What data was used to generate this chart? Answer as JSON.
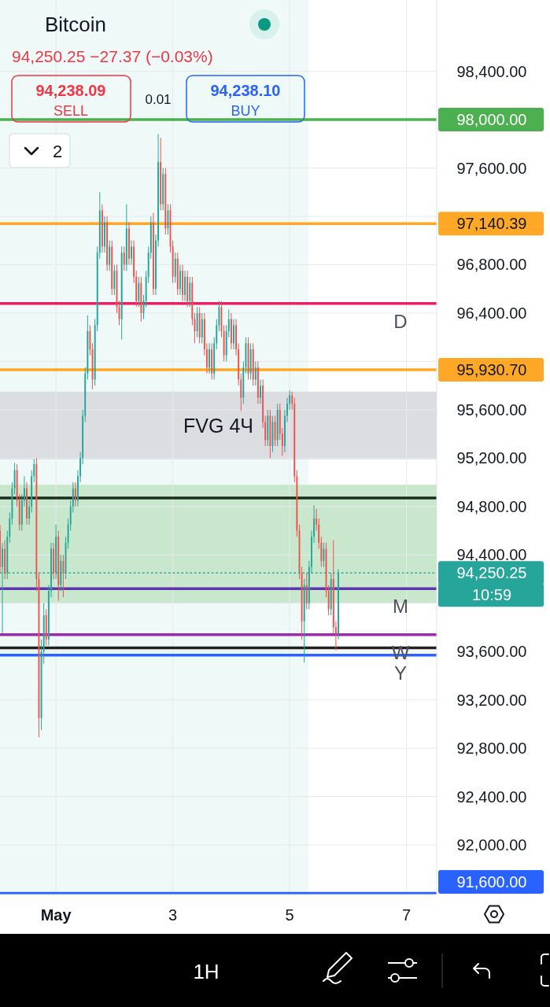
{
  "chart_data": {
    "type": "candlestick",
    "title": "Bitcoin",
    "subtitle": "94,250.25 −27.37 (−0.03%)",
    "annotations": [
      "94,238.09",
      "SELL",
      "0.01",
      "94,238.10",
      "BUY",
      "2",
      "10:59",
      "1H",
      {
        "text": "D",
        "y": 96480
      },
      {
        "text": "M",
        "y": 94120
      },
      {
        "text": "W",
        "y": 93740
      },
      {
        "text": "Y",
        "y": 93570
      }
    ],
    "x": [
      0.042,
      0.083,
      0.125,
      0.167,
      0.208,
      0.25,
      0.292,
      0.333,
      0.375,
      0.417,
      0.458,
      0.5,
      0.542,
      0.583,
      0.625,
      0.667,
      0.708,
      0.75,
      0.792,
      0.833,
      0.875,
      0.917,
      0.958,
      1,
      1.042,
      1.083,
      1.125,
      1.167,
      1.208,
      1.25,
      1.292,
      1.333,
      1.375,
      1.417,
      1.458,
      1.5,
      1.542,
      1.583,
      1.625,
      1.667,
      1.708,
      1.75,
      1.792,
      1.833,
      1.875,
      1.917,
      1.958,
      2,
      2.042,
      2.083,
      2.125,
      2.167,
      2.208,
      2.25,
      2.292,
      2.333,
      2.375,
      2.417,
      2.458,
      2.5,
      2.542,
      2.583,
      2.625,
      2.667,
      2.708,
      2.75,
      2.792,
      2.833,
      2.875,
      2.917,
      2.958,
      3,
      3.042,
      3.083,
      3.125,
      3.167,
      3.208,
      3.25,
      3.292,
      3.333,
      3.375,
      3.417,
      3.458,
      3.5,
      3.542,
      3.583,
      3.625,
      3.667,
      3.708,
      3.75,
      3.792,
      3.833,
      3.875,
      3.917,
      3.958,
      4,
      4.042,
      4.083,
      4.125,
      4.167,
      4.208,
      4.25,
      4.292,
      4.333,
      4.375,
      4.417,
      4.458,
      4.5,
      4.542,
      4.583,
      4.625,
      4.667,
      4.708,
      4.75,
      4.792,
      4.833,
      4.875,
      4.917,
      4.958,
      5,
      5.042,
      5.083,
      5.125,
      5.167,
      5.208,
      5.25,
      5.292,
      5.333,
      5.375,
      5.417,
      5.458,
      5.5,
      5.542,
      5.583,
      5.625,
      5.667,
      5.708,
      5.75,
      5.792,
      5.833
    ],
    "ohlc": [
      [
        94600,
        94650,
        94250,
        94300
      ],
      [
        94300,
        94500,
        93750,
        94450
      ],
      [
        94450,
        94520,
        94200,
        94250
      ],
      [
        94250,
        94600,
        94200,
        94550
      ],
      [
        94550,
        94750,
        94500,
        94700
      ],
      [
        94700,
        95000,
        94650,
        94950
      ],
      [
        94950,
        95160,
        94900,
        95100
      ],
      [
        95100,
        95150,
        94800,
        94850
      ],
      [
        94850,
        94900,
        94600,
        94650
      ],
      [
        94650,
        94900,
        94600,
        94850
      ],
      [
        94850,
        95050,
        94800,
        94950
      ],
      [
        94950,
        95000,
        94650,
        94700
      ],
      [
        94700,
        94850,
        94650,
        94800
      ],
      [
        94800,
        95100,
        94750,
        95050
      ],
      [
        95050,
        95190,
        95000,
        95150
      ],
      [
        95150,
        95200,
        94100,
        94200
      ],
      [
        94200,
        94250,
        92890,
        93050
      ],
      [
        93050,
        93700,
        92950,
        93600
      ],
      [
        93600,
        94000,
        93500,
        93900
      ],
      [
        93900,
        93950,
        93650,
        93700
      ],
      [
        93700,
        94150,
        93650,
        94100
      ],
      [
        94100,
        94500,
        94050,
        94450
      ],
      [
        94450,
        94500,
        94200,
        94250
      ],
      [
        94250,
        94650,
        94200,
        94550
      ],
      [
        94550,
        94600,
        94020,
        94150
      ],
      [
        94150,
        94400,
        94100,
        94350
      ],
      [
        94350,
        94400,
        94050,
        94250
      ],
      [
        94250,
        94550,
        94200,
        94500
      ],
      [
        94500,
        94700,
        94450,
        94650
      ],
      [
        94650,
        94850,
        94600,
        94800
      ],
      [
        94800,
        95000,
        94750,
        94950
      ],
      [
        94950,
        95000,
        94800,
        94850
      ],
      [
        94850,
        95100,
        94800,
        95050
      ],
      [
        95050,
        95250,
        95000,
        95200
      ],
      [
        95200,
        95600,
        95150,
        95550
      ],
      [
        95550,
        95950,
        95500,
        95900
      ],
      [
        95900,
        96380,
        95850,
        96250
      ],
      [
        96250,
        96300,
        96050,
        96100
      ],
      [
        96100,
        96150,
        95770,
        95850
      ],
      [
        95850,
        96350,
        95800,
        96300
      ],
      [
        96300,
        96950,
        96250,
        96900
      ],
      [
        96900,
        97400,
        96850,
        97250
      ],
      [
        97250,
        97300,
        96900,
        96950
      ],
      [
        96950,
        97200,
        96900,
        97150
      ],
      [
        97150,
        97200,
        96750,
        96800
      ],
      [
        96800,
        97000,
        96750,
        96950
      ],
      [
        96950,
        97000,
        96550,
        96600
      ],
      [
        96600,
        96800,
        96550,
        96750
      ],
      [
        96750,
        96800,
        96400,
        96450
      ],
      [
        96450,
        96500,
        96300,
        96350
      ],
      [
        96350,
        96950,
        96180,
        96900
      ],
      [
        96900,
        96950,
        96750,
        96800
      ],
      [
        96800,
        97300,
        96750,
        97100
      ],
      [
        97100,
        97150,
        96800,
        96850
      ],
      [
        96850,
        97000,
        96800,
        96950
      ],
      [
        96950,
        97000,
        96650,
        96700
      ],
      [
        96700,
        96750,
        96450,
        96500
      ],
      [
        96500,
        96700,
        96450,
        96650
      ],
      [
        96650,
        96700,
        96330,
        96400
      ],
      [
        96400,
        96550,
        96350,
        96500
      ],
      [
        96500,
        96750,
        96450,
        96700
      ],
      [
        96700,
        96950,
        96650,
        96900
      ],
      [
        96900,
        97200,
        96850,
        97150
      ],
      [
        97150,
        97230,
        96550,
        96600
      ],
      [
        96600,
        97050,
        96550,
        97000
      ],
      [
        97000,
        97880,
        96950,
        97650
      ],
      [
        97650,
        97850,
        97250,
        97300
      ],
      [
        97300,
        97600,
        97250,
        97550
      ],
      [
        97550,
        97600,
        97050,
        97100
      ],
      [
        97100,
        97300,
        97050,
        97250
      ],
      [
        97250,
        97300,
        96900,
        96950
      ],
      [
        96950,
        97000,
        96650,
        96700
      ],
      [
        96700,
        96900,
        96650,
        96850
      ],
      [
        96850,
        96900,
        96550,
        96600
      ],
      [
        96600,
        96800,
        96550,
        96750
      ],
      [
        96750,
        96800,
        96500,
        96550
      ],
      [
        96550,
        96750,
        96500,
        96700
      ],
      [
        96700,
        96750,
        96450,
        96500
      ],
      [
        96500,
        96700,
        96450,
        96650
      ],
      [
        96650,
        96700,
        96300,
        96350
      ],
      [
        96350,
        96400,
        96150,
        96250
      ],
      [
        96250,
        96450,
        96200,
        96400
      ],
      [
        96400,
        96450,
        96150,
        96200
      ],
      [
        96200,
        96400,
        96150,
        96350
      ],
      [
        96350,
        96400,
        96050,
        96100
      ],
      [
        96100,
        96150,
        95900,
        95950
      ],
      [
        95950,
        96150,
        95900,
        96100
      ],
      [
        96100,
        96150,
        95850,
        95900
      ],
      [
        95900,
        96200,
        95850,
        96150
      ],
      [
        96150,
        96350,
        96100,
        96300
      ],
      [
        96300,
        96500,
        96250,
        96450
      ],
      [
        96450,
        96500,
        96200,
        96250
      ],
      [
        96250,
        96300,
        96000,
        96050
      ],
      [
        96050,
        96300,
        96000,
        96250
      ],
      [
        96250,
        96430,
        96200,
        96350
      ],
      [
        96350,
        96400,
        96100,
        96150
      ],
      [
        96150,
        96350,
        96100,
        96300
      ],
      [
        96300,
        96350,
        96050,
        96100
      ],
      [
        96100,
        96150,
        95800,
        95850
      ],
      [
        95850,
        95900,
        95590,
        95700
      ],
      [
        95700,
        96000,
        95650,
        95950
      ],
      [
        95950,
        96200,
        95900,
        96150
      ],
      [
        96150,
        96200,
        95850,
        95900
      ],
      [
        95900,
        96150,
        95850,
        96100
      ],
      [
        96100,
        96150,
        95800,
        95850
      ],
      [
        95850,
        96000,
        95800,
        95950
      ],
      [
        95950,
        96000,
        95650,
        95700
      ],
      [
        95700,
        95850,
        95650,
        95800
      ],
      [
        95800,
        95850,
        95450,
        95500
      ],
      [
        95500,
        95550,
        95300,
        95350
      ],
      [
        95350,
        95600,
        95300,
        95550
      ],
      [
        95550,
        95600,
        95200,
        95300
      ],
      [
        95300,
        95550,
        95250,
        95500
      ],
      [
        95500,
        95550,
        95300,
        95350
      ],
      [
        95350,
        95650,
        95300,
        95600
      ],
      [
        95600,
        95650,
        95350,
        95400
      ],
      [
        95400,
        95450,
        95220,
        95300
      ],
      [
        95300,
        95600,
        95250,
        95550
      ],
      [
        95550,
        95700,
        95500,
        95650
      ],
      [
        95650,
        95760,
        95600,
        95720
      ],
      [
        95720,
        95750,
        95600,
        95650
      ],
      [
        95650,
        95700,
        95000,
        95050
      ],
      [
        95050,
        95100,
        94550,
        94600
      ],
      [
        94600,
        94650,
        94200,
        94250
      ],
      [
        94250,
        94300,
        93700,
        93850
      ],
      [
        93850,
        94200,
        93510,
        94150
      ],
      [
        94150,
        94250,
        93950,
        94000
      ],
      [
        94000,
        94350,
        93950,
        94300
      ],
      [
        94300,
        94600,
        94250,
        94550
      ],
      [
        94550,
        94810,
        94500,
        94700
      ],
      [
        94700,
        94780,
        94600,
        94650
      ],
      [
        94650,
        94700,
        94450,
        94500
      ],
      [
        94500,
        94550,
        94300,
        94350
      ],
      [
        94350,
        94500,
        94300,
        94450
      ],
      [
        94450,
        94500,
        94050,
        94100
      ],
      [
        94100,
        94150,
        93900,
        93950
      ],
      [
        93950,
        94250,
        93900,
        94200
      ],
      [
        94200,
        94520,
        93750,
        93800
      ],
      [
        93800,
        93850,
        93610,
        93750
      ],
      [
        93750,
        94280,
        93700,
        94250.25
      ]
    ],
    "colors": [
      "#ef5350",
      "#26a69a",
      "#ef5350",
      "#26a69a",
      "#26a69a",
      "#26a69a",
      "#26a69a",
      "#ef5350",
      "#ef5350",
      "#26a69a",
      "#26a69a",
      "#ef5350",
      "#26a69a",
      "#26a69a",
      "#26a69a",
      "#ef5350",
      "#ef5350",
      "#26a69a",
      "#26a69a",
      "#ef5350",
      "#26a69a",
      "#26a69a",
      "#ef5350",
      "#26a69a",
      "#ef5350",
      "#26a69a",
      "#ef5350",
      "#26a69a",
      "#26a69a",
      "#26a69a",
      "#26a69a",
      "#ef5350",
      "#26a69a",
      "#26a69a",
      "#26a69a",
      "#26a69a",
      "#26a69a",
      "#ef5350",
      "#ef5350",
      "#26a69a",
      "#26a69a",
      "#26a69a",
      "#ef5350",
      "#26a69a",
      "#ef5350",
      "#26a69a",
      "#ef5350",
      "#26a69a",
      "#ef5350",
      "#ef5350",
      "#26a69a",
      "#ef5350",
      "#26a69a",
      "#ef5350",
      "#26a69a",
      "#ef5350",
      "#ef5350",
      "#26a69a",
      "#ef5350",
      "#26a69a",
      "#26a69a",
      "#26a69a",
      "#26a69a",
      "#ef5350",
      "#26a69a",
      "#26a69a",
      "#ef5350",
      "#26a69a",
      "#ef5350",
      "#26a69a",
      "#ef5350",
      "#ef5350",
      "#26a69a",
      "#ef5350",
      "#26a69a",
      "#ef5350",
      "#26a69a",
      "#ef5350",
      "#26a69a",
      "#ef5350",
      "#ef5350",
      "#26a69a",
      "#ef5350",
      "#26a69a",
      "#ef5350",
      "#ef5350",
      "#26a69a",
      "#ef5350",
      "#26a69a",
      "#26a69a",
      "#26a69a",
      "#ef5350",
      "#ef5350",
      "#26a69a",
      "#26a69a",
      "#ef5350",
      "#26a69a",
      "#ef5350",
      "#ef5350",
      "#ef5350",
      "#26a69a",
      "#26a69a",
      "#ef5350",
      "#26a69a",
      "#ef5350",
      "#26a69a",
      "#ef5350",
      "#26a69a",
      "#ef5350",
      "#ef5350",
      "#26a69a",
      "#ef5350",
      "#26a69a",
      "#ef5350",
      "#26a69a",
      "#ef5350",
      "#ef5350",
      "#26a69a",
      "#26a69a",
      "#26a69a",
      "#ef5350",
      "#ef5350",
      "#ef5350",
      "#ef5350",
      "#ef5350",
      "#26a69a",
      "#ef5350",
      "#26a69a",
      "#26a69a",
      "#26a69a",
      "#ef5350",
      "#ef5350",
      "#ef5350",
      "#26a69a",
      "#ef5350",
      "#ef5350",
      "#26a69a",
      "#ef5350",
      "#ef5350",
      "#26a69a"
    ],
    "xlim": [
      0.042,
      7.517
    ],
    "ylim": [
      91590,
      98990
    ],
    "xticks": [
      {
        "value": 1,
        "label": "May"
      },
      3,
      5,
      7
    ],
    "yticks": [
      {
        "value": 98400,
        "label": "98,400.00"
      },
      {
        "value": 98000,
        "label": null
      },
      {
        "value": 97600,
        "label": "97,600.00"
      },
      {
        "value": 97200,
        "label": null
      },
      {
        "value": 96800,
        "label": "96,800.00"
      },
      {
        "value": 96400,
        "label": "96,400.00"
      },
      {
        "value": 96000,
        "label": null
      },
      {
        "value": 95600,
        "label": "95,600.00"
      },
      {
        "value": 95200,
        "label": "95,200.00"
      },
      {
        "value": 94800,
        "label": "94,800.00"
      },
      {
        "value": 94400,
        "label": "94,400.00"
      },
      {
        "value": 94000,
        "label": null
      },
      {
        "value": 93600,
        "label": "93,600.00"
      },
      {
        "value": 93200,
        "label": "93,200.00"
      },
      {
        "value": 92800,
        "label": "92,800.00"
      },
      {
        "value": 92400,
        "label": "92,400.00"
      },
      {
        "value": 92000,
        "label": "92,000.00"
      }
    ],
    "grid": true,
    "bands": [
      {
        "axis": "x",
        "from": 0.042,
        "to": 5.321,
        "color": "#eff9f7"
      },
      {
        "axis": "y",
        "from": 94000,
        "to": 94980,
        "color": "#c9e7cc"
      },
      {
        "axis": "y",
        "from": 95190,
        "to": 95750,
        "label": "FVG 4Ч",
        "color": "#dcdde1"
      }
    ],
    "ref_lines": [
      {
        "axis": "y",
        "value": 98000,
        "label": "98,000.00",
        "color": "#4caf50"
      },
      {
        "axis": "y",
        "value": 97140.39,
        "label": "97,140.39",
        "color": "#ffa726"
      },
      {
        "axis": "y",
        "value": 96480,
        "color": "#e91e63"
      },
      {
        "axis": "y",
        "value": 95930.7,
        "label": "95,930.70",
        "color": "#ffa726"
      },
      {
        "axis": "y",
        "value": 94870,
        "color": "#1b2e1d"
      },
      {
        "axis": "y",
        "value": 94250.25,
        "label": "94,250.25",
        "color": "#26a69a",
        "line_style": "dotted"
      },
      {
        "axis": "y",
        "value": 94120,
        "color": "#5e35b1"
      },
      {
        "axis": "y",
        "value": 93740,
        "color": "#9c27b0"
      },
      {
        "axis": "y",
        "value": 93630,
        "color": "#212121"
      },
      {
        "axis": "y",
        "value": 93570,
        "color": "#2962ff"
      },
      {
        "axis": "y",
        "value": 91600,
        "label": "91,600.00",
        "color": "#2962ff"
      }
    ]
  }
}
